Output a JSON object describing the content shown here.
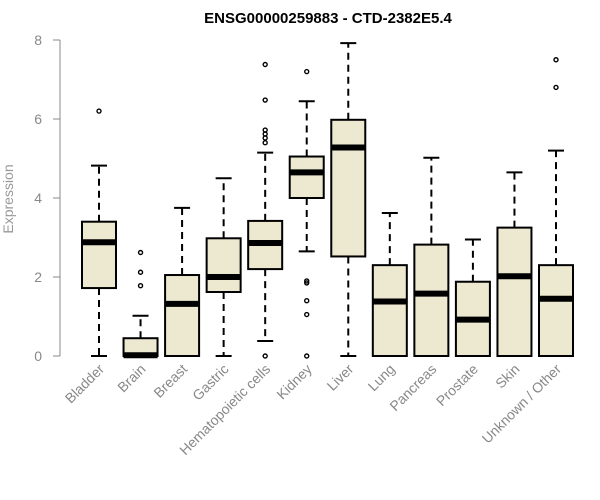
{
  "chart_data": {
    "type": "boxplot",
    "title": "ENSG00000259883 - CTD-2382E5.4",
    "xlabel": "",
    "ylabel": "Expression",
    "ylim": [
      0,
      8
    ],
    "yticks": [
      0,
      2,
      4,
      6,
      8
    ],
    "box_fill": "#ede8d0",
    "stroke_color": "#000000",
    "axis_color": "#888888",
    "categories": [
      "Bladder",
      "Brain",
      "Breast",
      "Gastric",
      "Hematopoietic cells",
      "Kidney",
      "Liver",
      "Lung",
      "Pancreas",
      "Prostate",
      "Skin",
      "Unknown / Other"
    ],
    "series": [
      {
        "name": "Bladder",
        "min": 0,
        "q1": 1.72,
        "median": 2.88,
        "q3": 3.4,
        "max": 4.82,
        "outliers": [
          6.2
        ]
      },
      {
        "name": "Brain",
        "min": 0,
        "q1": 0,
        "median": 0.02,
        "q3": 0.45,
        "max": 1.02,
        "outliers": [
          1.78,
          2.12,
          2.62
        ]
      },
      {
        "name": "Breast",
        "min": 0,
        "q1": 0,
        "median": 1.32,
        "q3": 2.05,
        "max": 3.75,
        "outliers": []
      },
      {
        "name": "Gastric",
        "min": 0,
        "q1": 1.62,
        "median": 2.0,
        "q3": 2.98,
        "max": 4.5,
        "outliers": []
      },
      {
        "name": "Hematopoietic cells",
        "min": 0.38,
        "q1": 2.2,
        "median": 2.86,
        "q3": 3.42,
        "max": 5.15,
        "outliers": [
          0,
          5.4,
          5.52,
          5.62,
          5.72,
          6.48,
          7.38
        ]
      },
      {
        "name": "Kidney",
        "min": 2.65,
        "q1": 4.0,
        "median": 4.65,
        "q3": 5.05,
        "max": 6.45,
        "outliers": [
          0,
          1.05,
          1.4,
          1.85,
          1.9,
          7.2
        ]
      },
      {
        "name": "Liver",
        "min": 0,
        "q1": 2.52,
        "median": 5.28,
        "q3": 5.98,
        "max": 7.92,
        "outliers": []
      },
      {
        "name": "Lung",
        "min": 0,
        "q1": 0,
        "median": 1.38,
        "q3": 2.3,
        "max": 3.62,
        "outliers": []
      },
      {
        "name": "Pancreas",
        "min": 0,
        "q1": 0,
        "median": 1.58,
        "q3": 2.82,
        "max": 5.02,
        "outliers": []
      },
      {
        "name": "Prostate",
        "min": 0,
        "q1": 0,
        "median": 0.92,
        "q3": 1.88,
        "max": 2.95,
        "outliers": []
      },
      {
        "name": "Skin",
        "min": 0,
        "q1": 0,
        "median": 2.02,
        "q3": 3.25,
        "max": 4.65,
        "outliers": []
      },
      {
        "name": "Unknown / Other",
        "min": 0,
        "q1": 0,
        "median": 1.45,
        "q3": 2.3,
        "max": 5.2,
        "outliers": [
          6.8,
          7.5
        ]
      }
    ]
  }
}
